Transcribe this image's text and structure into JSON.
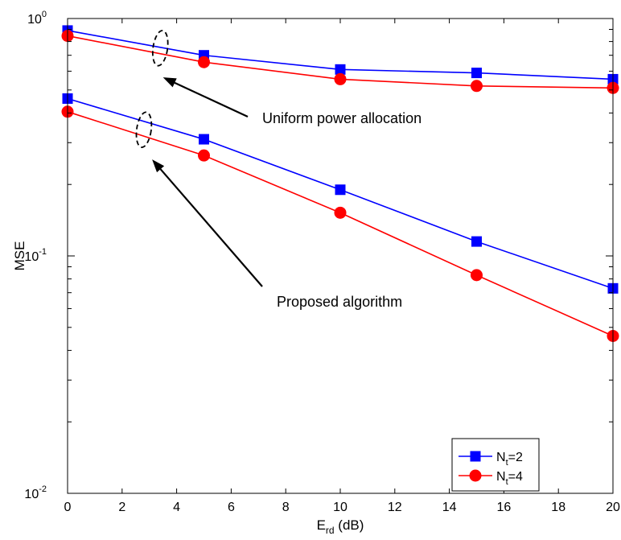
{
  "chart_data": {
    "type": "line",
    "title": "",
    "xlabel": {
      "main": "E",
      "sub": "rd",
      "unit": " (dB)"
    },
    "ylabel": "MSE",
    "xlim": [
      0,
      20
    ],
    "ylim": [
      0.01,
      1
    ],
    "yscale": "log",
    "x_ticks": [
      0,
      2,
      4,
      6,
      8,
      10,
      12,
      14,
      16,
      18,
      20
    ],
    "y_ticks": [
      {
        "value": 0.01,
        "base": "10",
        "exp": "-2"
      },
      {
        "value": 0.1,
        "base": "10",
        "exp": "-1"
      },
      {
        "value": 1,
        "base": "10",
        "exp": "0"
      }
    ],
    "grid": false,
    "legend_position": "bottom-right",
    "series": [
      {
        "group": "Uniform power allocation",
        "legend": {
          "main": "N",
          "sub": "t",
          "rest": "=2"
        },
        "color": "#0000ff",
        "marker": "square",
        "x": [
          0,
          5,
          10,
          15,
          20
        ],
        "y": [
          0.89,
          0.7,
          0.61,
          0.59,
          0.555
        ]
      },
      {
        "group": "Uniform power allocation",
        "legend": {
          "main": "N",
          "sub": "t",
          "rest": "=4"
        },
        "color": "#ff0000",
        "marker": "circle",
        "x": [
          0,
          5,
          10,
          15,
          20
        ],
        "y": [
          0.845,
          0.655,
          0.555,
          0.52,
          0.51
        ]
      },
      {
        "group": "Proposed algorithm",
        "color": "#0000ff",
        "marker": "square",
        "x": [
          0,
          5,
          10,
          15,
          20
        ],
        "y": [
          0.46,
          0.31,
          0.19,
          0.115,
          0.073
        ]
      },
      {
        "group": "Proposed algorithm",
        "color": "#ff0000",
        "marker": "circle",
        "x": [
          0,
          5,
          10,
          15,
          20
        ],
        "y": [
          0.405,
          0.265,
          0.152,
          0.083,
          0.046
        ]
      }
    ],
    "annotations": [
      {
        "text": "Uniform power allocation",
        "ellipse_at": {
          "x": 3.4,
          "y": 0.75
        },
        "arrow_to": {
          "x": 3.5,
          "y": 0.565
        }
      },
      {
        "text": "Proposed algorithm",
        "ellipse_at": {
          "x": 2.8,
          "y": 0.34
        },
        "arrow_to": {
          "x": 3.1,
          "y": 0.255
        }
      }
    ]
  }
}
